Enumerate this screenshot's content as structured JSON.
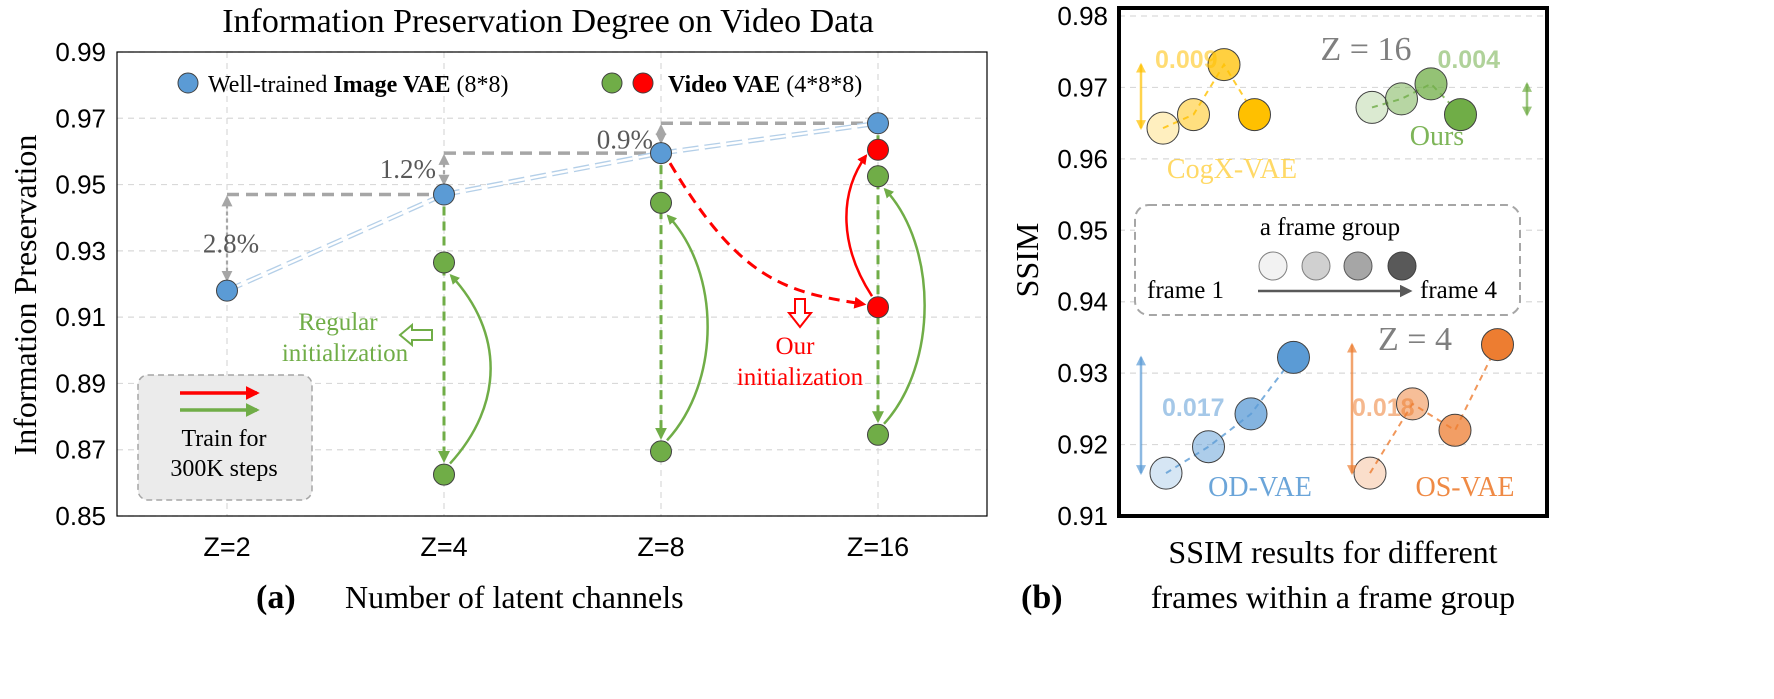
{
  "chart_data": [
    {
      "panel_tag": "(a)",
      "type": "scatter",
      "title": "Information Preservation Degree on Video Data",
      "xlabel": "Number of latent channels",
      "ylabel": "Information Preservation",
      "categories": [
        "Z=2",
        "Z=4",
        "Z=8",
        "Z=16"
      ],
      "ylim": [
        0.85,
        0.99
      ],
      "yticks": [
        "0.85",
        "0.87",
        "0.89",
        "0.91",
        "0.93",
        "0.95",
        "0.97",
        "0.99"
      ],
      "grid": true,
      "legend": {
        "position": "top",
        "image_label": "Well-trained ",
        "image_bold": "Image VAE",
        "image_suffix": " (8*8)",
        "video_bold": "Video VAE",
        "video_suffix": " (4*8*8)"
      },
      "series": [
        {
          "key": "image",
          "color": "#5b9bd5",
          "points": [
            {
              "cat": "Z=2",
              "y": 0.918
            },
            {
              "cat": "Z=4",
              "y": 0.947
            },
            {
              "cat": "Z=8",
              "y": 0.9595
            },
            {
              "cat": "Z=16",
              "y": 0.9685
            }
          ]
        },
        {
          "key": "video_regular",
          "color": "#70ad47",
          "points": [
            {
              "cat": "Z=4",
              "y": 0.9265
            },
            {
              "cat": "Z=4",
              "y": 0.8625
            },
            {
              "cat": "Z=8",
              "y": 0.9445
            },
            {
              "cat": "Z=8",
              "y": 0.8695
            },
            {
              "cat": "Z=16",
              "y": 0.9525
            },
            {
              "cat": "Z=16",
              "y": 0.8745
            }
          ]
        },
        {
          "key": "video_ours",
          "color": "#ff0000",
          "points": [
            {
              "cat": "Z=16",
              "y": 0.9605
            },
            {
              "cat": "Z=16",
              "y": 0.913
            }
          ]
        }
      ],
      "gaps": [
        {
          "label": "2.8%",
          "from_cat": "Z=2",
          "to_cat": "Z=4",
          "low": 0.918,
          "high": 0.947
        },
        {
          "label": "1.2%",
          "from_cat": "Z=4",
          "to_cat": "Z=8",
          "low": 0.947,
          "high": 0.9595
        },
        {
          "label": "0.9%",
          "from_cat": "Z=8",
          "to_cat": "Z=16",
          "low": 0.9595,
          "high": 0.9685
        }
      ],
      "annotations": {
        "regular_line1": "Regular",
        "regular_line2": "initialization",
        "our_line1": "Our",
        "our_line2": "initialization",
        "train_line1": "Train for",
        "train_line2": "300K steps"
      },
      "colors": {
        "image": "#5b9bd5",
        "video_regular": "#70ad47",
        "video_ours": "#ff0000",
        "gap_gray": "#a6a6a6"
      }
    },
    {
      "panel_tag": "(b)",
      "type": "scatter",
      "title": "",
      "xlabel_line1": "SSIM results for different",
      "xlabel_line2": "frames within a frame group",
      "ylabel": "SSIM",
      "ylim": [
        0.91,
        0.98
      ],
      "yticks": [
        "0.91",
        "0.92",
        "0.93",
        "0.94",
        "0.95",
        "0.96",
        "0.97",
        "0.98"
      ],
      "grid": true,
      "group_labels": {
        "z16": "Z = 16",
        "z4": "Z = 4"
      },
      "series": [
        {
          "name": "CogX-VAE",
          "color": "#ffc000",
          "diff": "0.009",
          "values": [
            0.9643,
            0.9662,
            0.9732,
            0.9662
          ]
        },
        {
          "name": "Ours",
          "color": "#70ad47",
          "diff": "0.004",
          "values": [
            0.9672,
            0.9684,
            0.9705,
            0.9662
          ]
        },
        {
          "name": "OD-VAE",
          "color": "#5b9bd5",
          "diff": "0.017",
          "values": [
            0.916,
            0.9197,
            0.9243,
            0.9322
          ]
        },
        {
          "name": "OS-VAE",
          "color": "#ed7d31",
          "diff": "0.018",
          "values": [
            0.916,
            0.9257,
            0.922,
            0.934
          ]
        }
      ],
      "legend_box": {
        "title": "a frame group",
        "start": "frame 1",
        "end": "frame 4"
      }
    }
  ]
}
